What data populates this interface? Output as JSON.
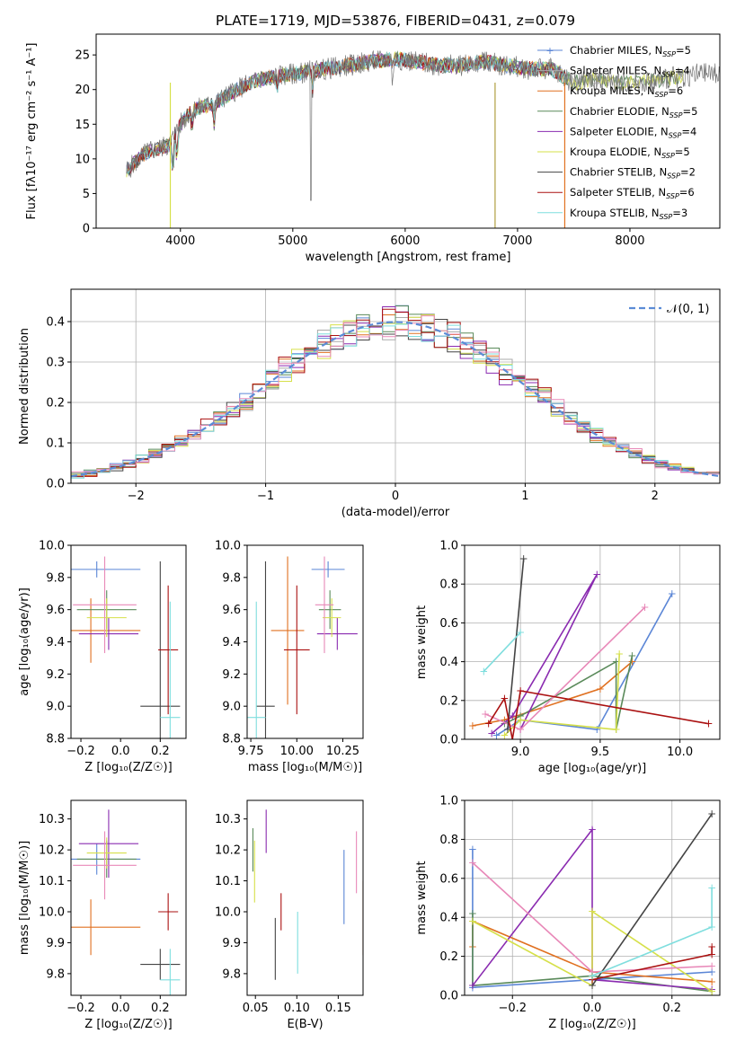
{
  "title": "PLATE=1719, MJD=53876, FIBERID=0431, z=0.079",
  "colors": {
    "Chabrier MILES": "#5b86d6",
    "Salpeter MILES": "#aaaaaa",
    "Kroupa MILES": "#e07020",
    "Chabrier ELODIE": "#5a8a5a",
    "Salpeter ELODIE": "#8a2bb0",
    "Kroupa ELODIE": "#d6e04a",
    "Chabrier STELIB": "#444444",
    "Salpeter STELIB": "#aa1010",
    "Kroupa STELIB": "#7fdede",
    "pink": "#e888b8"
  },
  "chart_data": [
    {
      "type": "line",
      "panel": "spectrum",
      "title": "PLATE=1719, MJD=53876, FIBERID=0431, z=0.079",
      "xlabel": "wavelength [Angstrom, rest frame]",
      "ylabel": "Flux [fλ10⁻¹⁷ erg cm⁻² s⁻¹ A⁻¹]",
      "xlim": [
        3250,
        8800
      ],
      "ylim": [
        0,
        28
      ],
      "xticks": [
        "4000",
        "5000",
        "6000",
        "7000",
        "8000"
      ],
      "yticks": [
        "0",
        "5",
        "10",
        "15",
        "20",
        "25"
      ],
      "grid": false,
      "legend": "upper right",
      "legend_entries": [
        "Chabrier MILES, N_SSP=5",
        "Salpeter MILES, N_SSP=4",
        "Kroupa MILES, N_SSP=6",
        "Chabrier ELODIE, N_SSP=5",
        "Salpeter ELODIE, N_SSP=4",
        "Kroupa ELODIE, N_SSP=5",
        "Chabrier STELIB, N_SSP=2",
        "Salpeter STELIB, N_SSP=6",
        "Kroupa STELIB, N_SSP=3"
      ],
      "continuum": {
        "x": [
          3500,
          3700,
          3900,
          4000,
          4100,
          4300,
          4500,
          4700,
          4900,
          5100,
          5300,
          5500,
          5700,
          5900,
          6100,
          6300,
          6500,
          6700,
          6900,
          7100,
          7300,
          7500,
          7700,
          7900,
          8100,
          8300,
          8500,
          8800
        ],
        "y": [
          8,
          11,
          12,
          15,
          17,
          18,
          20,
          21.5,
          22,
          22.5,
          23,
          23.5,
          24,
          24.5,
          24,
          23.5,
          23.5,
          24,
          23.5,
          23,
          23,
          21,
          21.5,
          21,
          21,
          21.5,
          22,
          22.5
        ]
      }
    },
    {
      "type": "line",
      "panel": "residual-distribution",
      "xlabel": "(data-model)/error",
      "ylabel": "Normed distribution",
      "xlim": [
        -2.5,
        2.5
      ],
      "ylim": [
        0,
        0.48
      ],
      "xticks": [
        "−2",
        "−1",
        "0",
        "1",
        "2"
      ],
      "yticks": [
        "0.0",
        "0.1",
        "0.2",
        "0.3",
        "0.4"
      ],
      "grid": true,
      "legend": "upper right",
      "legend_entries": [
        "𝒩(0, 1)"
      ]
    },
    {
      "type": "scatter",
      "panel": "age-vs-Z",
      "xlabel": "Z [log₁₀(Z/Z☉)]",
      "ylabel": "age  [log₁₀(age/yr)]",
      "xlim": [
        -0.25,
        0.33
      ],
      "ylim": [
        8.8,
        10.0
      ],
      "xticks": [
        "−0.2",
        "0.0",
        "0.2"
      ],
      "yticks": [
        "8.8",
        "9.0",
        "9.2",
        "9.4",
        "9.6",
        "9.8",
        "10.0"
      ],
      "points": [
        {
          "c": "Chabrier MILES",
          "x": -0.12,
          "y": 9.85,
          "xe": 0.22,
          "ye": 0.05
        },
        {
          "c": "Kroupa MILES",
          "x": -0.15,
          "y": 9.47,
          "xe": 0.25,
          "ye": 0.2
        },
        {
          "c": "Chabrier ELODIE",
          "x": -0.07,
          "y": 9.6,
          "xe": 0.15,
          "ye": 0.12
        },
        {
          "c": "Salpeter ELODIE",
          "x": -0.06,
          "y": 9.45,
          "xe": 0.15,
          "ye": 0.1
        },
        {
          "c": "Kroupa ELODIE",
          "x": -0.07,
          "y": 9.55,
          "xe": 0.1,
          "ye": 0.12
        },
        {
          "c": "pink",
          "x": -0.08,
          "y": 9.63,
          "xe": 0.16,
          "ye": 0.3
        },
        {
          "c": "Chabrier STELIB",
          "x": 0.2,
          "y": 9.0,
          "xe": 0.1,
          "ye": 0.9
        },
        {
          "c": "Salpeter STELIB",
          "x": 0.24,
          "y": 9.35,
          "xe": 0.05,
          "ye": 0.4
        },
        {
          "c": "Kroupa STELIB",
          "x": 0.25,
          "y": 8.93,
          "xe": 0.05,
          "ye": 0.72
        }
      ]
    },
    {
      "type": "scatter",
      "panel": "age-vs-mass",
      "xlabel": "mass [log₁₀(M/M☉)]",
      "ylabel": "",
      "xlim": [
        9.73,
        10.36
      ],
      "ylim": [
        8.8,
        10.0
      ],
      "xticks": [
        "9.75",
        "10.00",
        "10.25"
      ],
      "yticks": [
        "8.8",
        "9.0",
        "9.2",
        "9.4",
        "9.6",
        "9.8",
        "10.0"
      ],
      "points": [
        {
          "c": "Chabrier MILES",
          "x": 10.17,
          "y": 9.85,
          "xe": 0.09,
          "ye": 0.05
        },
        {
          "c": "Kroupa MILES",
          "x": 9.95,
          "y": 9.47,
          "xe": 0.09,
          "ye": 0.46
        },
        {
          "c": "Chabrier ELODIE",
          "x": 10.18,
          "y": 9.6,
          "xe": 0.06,
          "ye": 0.12
        },
        {
          "c": "Salpeter ELODIE",
          "x": 10.22,
          "y": 9.45,
          "xe": 0.11,
          "ye": 0.1
        },
        {
          "c": "Kroupa ELODIE",
          "x": 10.19,
          "y": 9.55,
          "xe": 0.05,
          "ye": 0.12
        },
        {
          "c": "pink",
          "x": 10.15,
          "y": 9.63,
          "xe": 0.05,
          "ye": 0.3
        },
        {
          "c": "Chabrier STELIB",
          "x": 9.83,
          "y": 9.0,
          "xe": 0.05,
          "ye": 0.9
        },
        {
          "c": "Salpeter STELIB",
          "x": 10.0,
          "y": 9.35,
          "xe": 0.07,
          "ye": 0.4
        },
        {
          "c": "Kroupa STELIB",
          "x": 9.78,
          "y": 8.93,
          "xe": 0.05,
          "ye": 0.72
        }
      ]
    },
    {
      "type": "line",
      "panel": "mass-weight-vs-age",
      "xlabel": "age  [log₁₀(age/yr)]",
      "ylabel": "mass weight",
      "xlim": [
        8.65,
        10.25
      ],
      "ylim": [
        0,
        1.0
      ],
      "xticks": [
        "9.0",
        "9.5",
        "10.0"
      ],
      "yticks": [
        "0.0",
        "0.2",
        "0.4",
        "0.6",
        "0.8",
        "1.0"
      ],
      "grid": true
    },
    {
      "type": "scatter",
      "panel": "mass-vs-Z",
      "xlabel": "Z [log₁₀(Z/Z☉)]",
      "ylabel": "mass [log₁₀(M/M☉)]",
      "xlim": [
        -0.25,
        0.33
      ],
      "ylim": [
        9.73,
        10.36
      ],
      "xticks": [
        "−0.2",
        "0.0",
        "0.2"
      ],
      "yticks": [
        "9.8",
        "9.9",
        "10.0",
        "10.1",
        "10.2",
        "10.3"
      ],
      "points": [
        {
          "c": "Chabrier MILES",
          "x": -0.12,
          "y": 10.17,
          "xe": 0.22,
          "ye": 0.05
        },
        {
          "c": "Kroupa MILES",
          "x": -0.15,
          "y": 9.95,
          "xe": 0.25,
          "ye": 0.09
        },
        {
          "c": "Chabrier ELODIE",
          "x": -0.07,
          "y": 10.17,
          "xe": 0.15,
          "ye": 0.06
        },
        {
          "c": "Salpeter ELODIE",
          "x": -0.06,
          "y": 10.22,
          "xe": 0.15,
          "ye": 0.11
        },
        {
          "c": "Kroupa ELODIE",
          "x": -0.07,
          "y": 10.19,
          "xe": 0.1,
          "ye": 0.05
        },
        {
          "c": "pink",
          "x": -0.08,
          "y": 10.15,
          "xe": 0.16,
          "ye": 0.11
        },
        {
          "c": "Chabrier STELIB",
          "x": 0.2,
          "y": 9.83,
          "xe": 0.1,
          "ye": 0.05
        },
        {
          "c": "Salpeter STELIB",
          "x": 0.24,
          "y": 10.0,
          "xe": 0.05,
          "ye": 0.06
        },
        {
          "c": "Kroupa STELIB",
          "x": 0.25,
          "y": 9.78,
          "xe": 0.05,
          "ye": 0.1
        }
      ]
    },
    {
      "type": "scatter",
      "panel": "mass-vs-EBV",
      "xlabel": "E(B-V)",
      "ylabel": "",
      "xlim": [
        0.04,
        0.18
      ],
      "ylim": [
        9.73,
        10.36
      ],
      "xticks": [
        "0.05",
        "0.10",
        "0.15"
      ],
      "yticks": [
        "9.8",
        "9.9",
        "10.0",
        "10.1",
        "10.2",
        "10.3"
      ],
      "points": [
        {
          "c": "Chabrier MILES",
          "x": 0.157,
          "y": 10.08,
          "ye": 0.12
        },
        {
          "c": "Kroupa MILES",
          "x": 0.18,
          "y": 9.98,
          "ye": 0.12
        },
        {
          "c": "Chabrier ELODIE",
          "x": 0.047,
          "y": 10.2,
          "ye": 0.07
        },
        {
          "c": "Salpeter ELODIE",
          "x": 0.063,
          "y": 10.26,
          "ye": 0.07
        },
        {
          "c": "Kroupa ELODIE",
          "x": 0.049,
          "y": 10.13,
          "ye": 0.1
        },
        {
          "c": "pink",
          "x": 0.172,
          "y": 10.16,
          "ye": 0.1
        },
        {
          "c": "Chabrier STELIB",
          "x": 0.074,
          "y": 9.88,
          "ye": 0.1
        },
        {
          "c": "Salpeter STELIB",
          "x": 0.081,
          "y": 10.0,
          "ye": 0.06
        },
        {
          "c": "Kroupa STELIB",
          "x": 0.101,
          "y": 9.9,
          "ye": 0.1
        }
      ]
    },
    {
      "type": "line",
      "panel": "mass-weight-vs-Z",
      "xlabel": "Z [log₁₀(Z/Z☉)]",
      "ylabel": "mass weight",
      "xlim": [
        -0.32,
        0.32
      ],
      "ylim": [
        0,
        1.0
      ],
      "xticks": [
        "−0.2",
        "0.0",
        "0.2"
      ],
      "yticks": [
        "0.0",
        "0.2",
        "0.4",
        "0.6",
        "0.8",
        "1.0"
      ],
      "grid": true
    }
  ]
}
